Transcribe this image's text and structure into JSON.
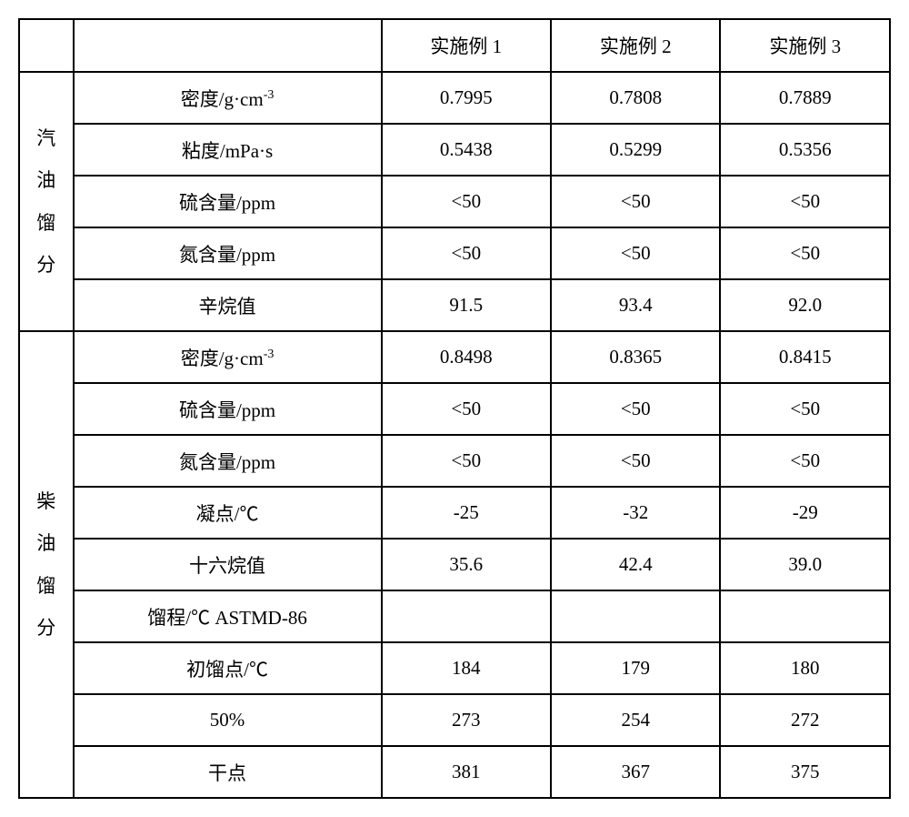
{
  "headers": {
    "corner": "",
    "param": "",
    "col1": "实施例 1",
    "col2": "实施例 2",
    "col3": "实施例 3"
  },
  "categories": {
    "gasoline": "汽油馏分",
    "diesel": "柴油馏分"
  },
  "gasoline_rows": [
    {
      "param_prefix": "密度/g·cm",
      "param_sup": "-3",
      "v1": "0.7995",
      "v2": "0.7808",
      "v3": "0.7889"
    },
    {
      "param": "粘度/mPa·s",
      "v1": "0.5438",
      "v2": "0.5299",
      "v3": "0.5356"
    },
    {
      "param": "硫含量/ppm",
      "v1": "<50",
      "v2": "<50",
      "v3": "<50"
    },
    {
      "param": "氮含量/ppm",
      "v1": "<50",
      "v2": "<50",
      "v3": "<50"
    },
    {
      "param": "辛烷值",
      "v1": "91.5",
      "v2": "93.4",
      "v3": "92.0"
    }
  ],
  "diesel_rows": [
    {
      "param_prefix": "密度/g·cm",
      "param_sup": "-3",
      "v1": "0.8498",
      "v2": "0.8365",
      "v3": "0.8415"
    },
    {
      "param": "硫含量/ppm",
      "v1": "<50",
      "v2": "<50",
      "v3": "<50"
    },
    {
      "param": "氮含量/ppm",
      "v1": "<50",
      "v2": "<50",
      "v3": "<50"
    },
    {
      "param": "凝点/℃",
      "v1": "-25",
      "v2": "-32",
      "v3": "-29"
    },
    {
      "param": "十六烷值",
      "v1": "35.6",
      "v2": "42.4",
      "v3": "39.0"
    },
    {
      "param": "馏程/℃  ASTMD-86",
      "v1": "",
      "v2": "",
      "v3": ""
    },
    {
      "param": "初馏点/℃",
      "v1": "184",
      "v2": "179",
      "v3": "180"
    },
    {
      "param": "50%",
      "v1": "273",
      "v2": "254",
      "v3": "272"
    },
    {
      "param": "干点",
      "v1": "381",
      "v2": "367",
      "v3": "375"
    }
  ],
  "category_chars": {
    "g1": "汽",
    "g2": "油",
    "g3": "馏",
    "g4": "分",
    "d1": "柴",
    "d2": "油",
    "d3": "馏",
    "d4": "分"
  }
}
